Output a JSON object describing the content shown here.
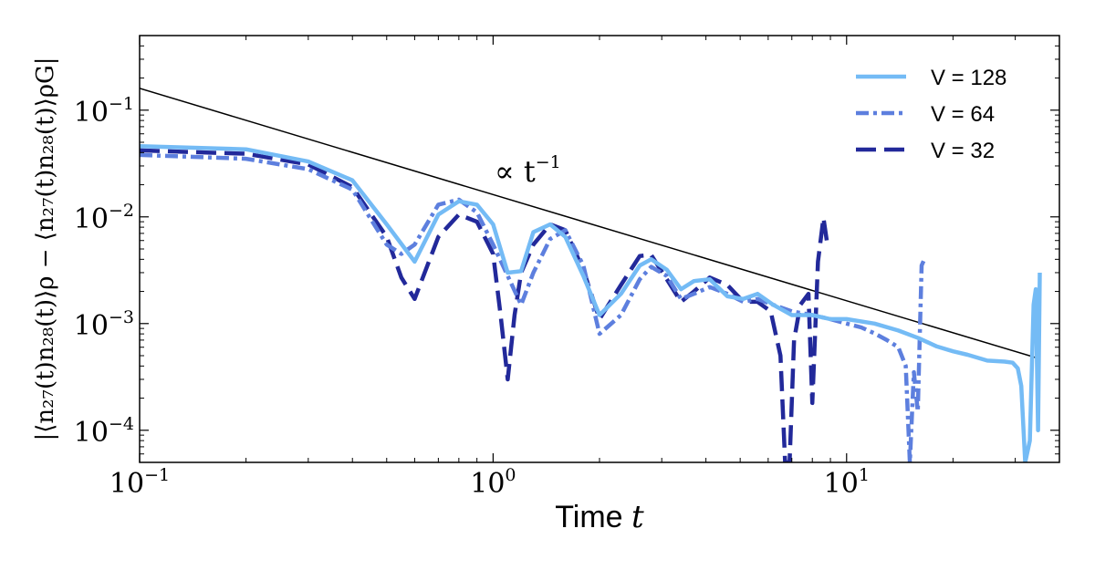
{
  "chart_data": {
    "type": "line",
    "xlabel": "Time",
    "xlabel_var": "t",
    "ylabel": "|⟨n₂₇(t)n₂₈(t)⟩ρ − ⟨n₂₇(t)n₂₈(t)⟩ρG|",
    "xscale": "log",
    "yscale": "log",
    "xlim": [
      0.1,
      40
    ],
    "ylim": [
      5e-05,
      0.5
    ],
    "grid": false,
    "legend_position": "top-right",
    "x_ticks": [
      {
        "value": 0.1,
        "base": "10",
        "exp": "−1"
      },
      {
        "value": 1,
        "base": "10",
        "exp": "0"
      },
      {
        "value": 10,
        "base": "10",
        "exp": "1"
      }
    ],
    "y_ticks": [
      {
        "value": 0.1,
        "base": "10",
        "exp": "−1"
      },
      {
        "value": 0.01,
        "base": "10",
        "exp": "−2"
      },
      {
        "value": 0.001,
        "base": "10",
        "exp": "−3"
      },
      {
        "value": 0.0001,
        "base": "10",
        "exp": "−4"
      }
    ],
    "reference_line": {
      "label": "∝ t",
      "label_exp": "−1",
      "x": [
        0.1,
        35
      ],
      "y": [
        0.16,
        0.00047
      ],
      "color": "#000000"
    },
    "series": [
      {
        "name": "V = 128",
        "color": "#74bbf5",
        "style": "solid",
        "x": [
          0.1,
          0.2,
          0.3,
          0.4,
          0.5,
          0.6,
          0.7,
          0.8,
          0.9,
          1.0,
          1.1,
          1.2,
          1.3,
          1.45,
          1.6,
          1.8,
          2.0,
          2.3,
          2.6,
          2.8,
          3.1,
          3.4,
          3.7,
          4.1,
          4.6,
          5.1,
          5.6,
          6.2,
          7.0,
          8.0,
          9.0,
          10,
          12,
          14,
          16,
          18,
          20,
          22,
          25,
          28,
          29.5,
          30.5,
          31.2,
          32,
          33,
          33.8,
          34.3,
          34.8,
          35.2
        ],
        "y": [
          0.046,
          0.043,
          0.033,
          0.022,
          0.0085,
          0.0038,
          0.0105,
          0.014,
          0.013,
          0.0085,
          0.003,
          0.0031,
          0.0072,
          0.0085,
          0.0065,
          0.0028,
          0.0012,
          0.0019,
          0.0035,
          0.004,
          0.0032,
          0.0021,
          0.0025,
          0.0026,
          0.0018,
          0.0017,
          0.0019,
          0.0015,
          0.0012,
          0.0012,
          0.0011,
          0.0011,
          0.001,
          0.00086,
          0.00073,
          0.00061,
          0.00055,
          0.00051,
          0.00045,
          0.00044,
          0.00043,
          0.00038,
          0.00026,
          5e-05,
          8e-05,
          0.0015,
          0.0021,
          0.0001,
          0.003
        ]
      },
      {
        "name": "V = 64",
        "color": "#5d7fde",
        "style": "dashdot",
        "x": [
          0.1,
          0.2,
          0.3,
          0.4,
          0.5,
          0.55,
          0.6,
          0.7,
          0.8,
          0.9,
          1.0,
          1.1,
          1.2,
          1.3,
          1.45,
          1.6,
          1.8,
          2.0,
          2.3,
          2.6,
          2.8,
          3.1,
          3.4,
          3.7,
          4.1,
          4.6,
          5.1,
          5.6,
          6.2,
          7.0,
          8.0,
          9.0,
          10,
          11,
          12,
          13,
          14,
          14.7,
          15.1,
          15.5,
          15.9,
          16.3,
          16.7
        ],
        "y": [
          0.038,
          0.035,
          0.028,
          0.018,
          0.0055,
          0.0045,
          0.0055,
          0.013,
          0.0145,
          0.011,
          0.0055,
          0.0028,
          0.0015,
          0.003,
          0.0062,
          0.0075,
          0.0035,
          0.0008,
          0.0012,
          0.0026,
          0.0034,
          0.0028,
          0.0017,
          0.0019,
          0.0022,
          0.0019,
          0.0016,
          0.0017,
          0.0015,
          0.0013,
          0.0012,
          0.0011,
          0.001,
          0.00092,
          0.00081,
          0.0007,
          0.0006,
          0.0004,
          5e-05,
          0.00035,
          0.00015,
          0.0035,
          0.0042
        ]
      },
      {
        "name": "V = 32",
        "color": "#22299a",
        "style": "dashed",
        "x": [
          0.1,
          0.2,
          0.3,
          0.4,
          0.5,
          0.55,
          0.6,
          0.7,
          0.8,
          0.9,
          1.0,
          1.05,
          1.1,
          1.15,
          1.2,
          1.3,
          1.45,
          1.6,
          1.8,
          2.0,
          2.3,
          2.6,
          2.8,
          3.1,
          3.4,
          3.7,
          4.1,
          4.6,
          5.1,
          5.6,
          6.1,
          6.5,
          6.7,
          6.9,
          7.1,
          7.4,
          7.8,
          8.0,
          8.1,
          8.3,
          8.6,
          8.8
        ],
        "y": [
          0.042,
          0.039,
          0.031,
          0.019,
          0.0065,
          0.0027,
          0.0017,
          0.0065,
          0.0105,
          0.009,
          0.0045,
          0.0012,
          0.0003,
          0.0012,
          0.003,
          0.0055,
          0.0085,
          0.0075,
          0.0032,
          0.0011,
          0.0023,
          0.0043,
          0.0044,
          0.0026,
          0.0016,
          0.002,
          0.0027,
          0.0023,
          0.0016,
          0.0016,
          0.0013,
          0.0005,
          5e-05,
          5e-05,
          0.0007,
          0.0015,
          0.0019,
          0.00018,
          0.0005,
          0.0038,
          0.0098,
          0.0058
        ]
      }
    ]
  }
}
